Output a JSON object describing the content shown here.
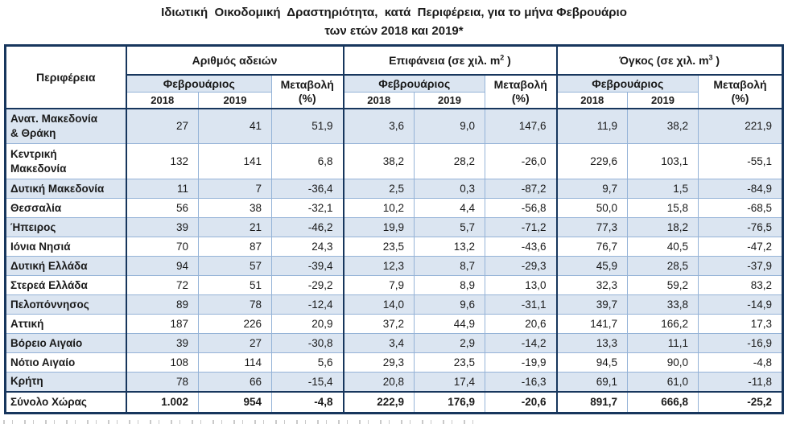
{
  "title": {
    "line1": "Ιδιωτική  Οικοδομική  Δραστηριότητα,  κατά  Περιφέρεια, για το μήνα Φεβρουάριο",
    "line2": "των ετών 2018 και 2019*"
  },
  "table": {
    "region_header": "Περιφέρεια",
    "month_header": "Φεβρουάριος",
    "change_header_line1": "Μεταβολή",
    "change_header_line2": "(%)",
    "year_2018": "2018",
    "year_2019": "2019",
    "groups": [
      {
        "prefix": "Αριθμός αδειών",
        "sup": "",
        "suffix": ""
      },
      {
        "prefix": "Επιφάνεια (σε χιλ. m",
        "sup": "2",
        "suffix": " )"
      },
      {
        "prefix": "Όγκος (σε χιλ. m",
        "sup": "3",
        "suffix": " )"
      }
    ],
    "rows": [
      {
        "name": "Ανατ. Μακεδονία\n& Θράκη",
        "values": [
          "27",
          "41",
          "51,9",
          "3,6",
          "9,0",
          "147,6",
          "11,9",
          "38,2",
          "221,9"
        ]
      },
      {
        "name": "Κεντρική\nΜακεδονία",
        "values": [
          "132",
          "141",
          "6,8",
          "38,2",
          "28,2",
          "-26,0",
          "229,6",
          "103,1",
          "-55,1"
        ]
      },
      {
        "name": "Δυτική Μακεδονία",
        "values": [
          "11",
          "7",
          "-36,4",
          "2,5",
          "0,3",
          "-87,2",
          "9,7",
          "1,5",
          "-84,9"
        ]
      },
      {
        "name": "Θεσσαλία",
        "values": [
          "56",
          "38",
          "-32,1",
          "10,2",
          "4,4",
          "-56,8",
          "50,0",
          "15,8",
          "-68,5"
        ]
      },
      {
        "name": "Ήπειρος",
        "values": [
          "39",
          "21",
          "-46,2",
          "19,9",
          "5,7",
          "-71,2",
          "77,3",
          "18,2",
          "-76,5"
        ]
      },
      {
        "name": "Ιόνια Νησιά",
        "values": [
          "70",
          "87",
          "24,3",
          "23,5",
          "13,2",
          "-43,6",
          "76,7",
          "40,5",
          "-47,2"
        ]
      },
      {
        "name": "Δυτική Ελλάδα",
        "values": [
          "94",
          "57",
          "-39,4",
          "12,3",
          "8,7",
          "-29,3",
          "45,9",
          "28,5",
          "-37,9"
        ]
      },
      {
        "name": "Στερεά Ελλάδα",
        "values": [
          "72",
          "51",
          "-29,2",
          "7,9",
          "8,9",
          "13,0",
          "32,3",
          "59,2",
          "83,2"
        ]
      },
      {
        "name": "Πελοπόννησος",
        "values": [
          "89",
          "78",
          "-12,4",
          "14,0",
          "9,6",
          "-31,1",
          "39,7",
          "33,8",
          "-14,9"
        ]
      },
      {
        "name": "Αττική",
        "values": [
          "187",
          "226",
          "20,9",
          "37,2",
          "44,9",
          "20,6",
          "141,7",
          "166,2",
          "17,3"
        ]
      },
      {
        "name": "Βόρειο Αιγαίο",
        "values": [
          "39",
          "27",
          "-30,8",
          "3,4",
          "2,9",
          "-14,2",
          "13,3",
          "11,1",
          "-16,9"
        ]
      },
      {
        "name": "Νότιο Αιγαίο",
        "values": [
          "108",
          "114",
          "5,6",
          "29,3",
          "23,5",
          "-19,9",
          "94,5",
          "90,0",
          "-4,8"
        ]
      },
      {
        "name": "Κρήτη",
        "values": [
          "78",
          "66",
          "-15,4",
          "20,8",
          "17,4",
          "-16,3",
          "69,1",
          "61,0",
          "-11,8"
        ]
      }
    ],
    "total": {
      "name": "Σύνολο Χώρας",
      "values": [
        "1.002",
        "954",
        "-4,8",
        "222,9",
        "176,9",
        "-20,6",
        "891,7",
        "666,8",
        "-25,2"
      ]
    }
  },
  "colors": {
    "row_band": "#dbe5f1",
    "cell_border": "#95b3d7",
    "dark_border": "#17365d",
    "text": "#1a1a1a"
  }
}
